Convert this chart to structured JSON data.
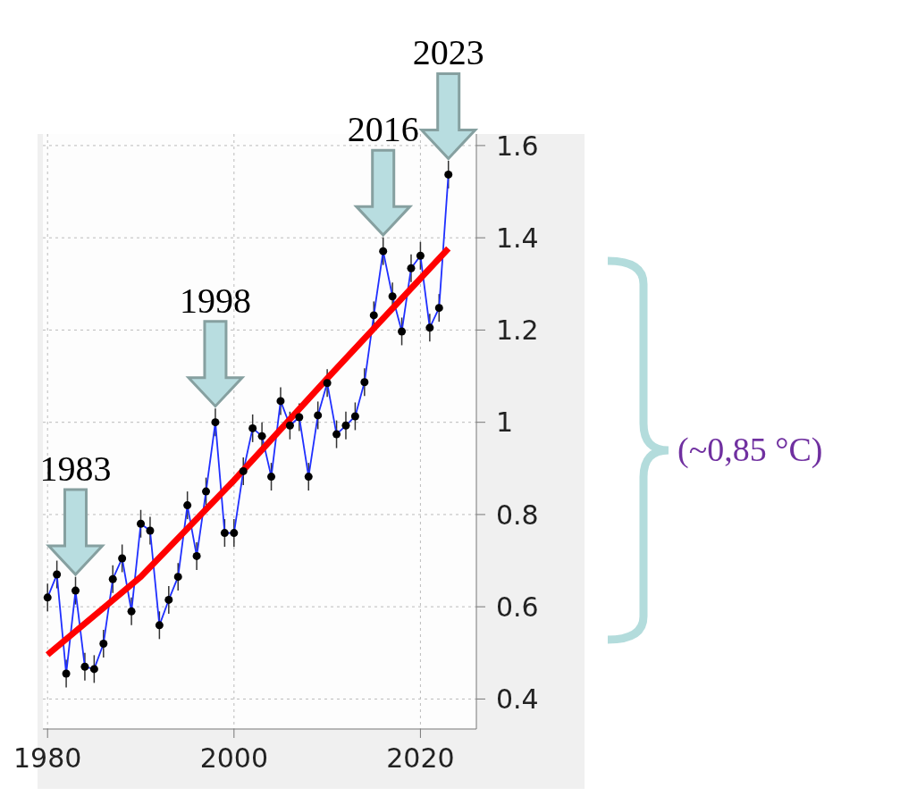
{
  "chart_data": {
    "type": "line",
    "x": [
      1980,
      1981,
      1982,
      1983,
      1984,
      1985,
      1986,
      1987,
      1988,
      1989,
      1990,
      1991,
      1992,
      1993,
      1994,
      1995,
      1996,
      1997,
      1998,
      1999,
      2000,
      2001,
      2002,
      2003,
      2004,
      2005,
      2006,
      2007,
      2008,
      2009,
      2010,
      2011,
      2012,
      2013,
      2014,
      2015,
      2016,
      2017,
      2018,
      2019,
      2020,
      2021,
      2022,
      2023
    ],
    "series": [
      {
        "color": "#1f2fff",
        "marker": "circle",
        "colors": [
          "#000000",
          "#000000",
          "#000000",
          "#000000",
          "#000000",
          "#000000",
          "#000000",
          "#000000",
          "#000000",
          "#000000",
          "#000000",
          "#000000",
          "#000000",
          "#000000",
          "#000000",
          "#000000",
          "#000000",
          "#000000",
          "#000000",
          "#000000",
          "#000000",
          "#000000",
          "#000000",
          "#000000",
          "#000000",
          "#000000",
          "#000000",
          "#000000",
          "#000000",
          "#000000",
          "#000000",
          "#000000",
          "#000000",
          "#000000",
          "#000000",
          "#000000",
          "#000000",
          "#000000",
          "#000000",
          "#000000",
          "#000000",
          "#000000",
          "#000000",
          "#000000"
        ],
        "values": [
          0.62,
          0.67,
          0.455,
          0.635,
          0.47,
          0.465,
          0.52,
          0.66,
          0.705,
          0.59,
          0.78,
          0.765,
          0.56,
          0.615,
          0.665,
          0.82,
          0.71,
          0.85,
          1.0,
          0.76,
          0.76,
          0.894,
          0.987,
          0.97,
          0.882,
          1.046,
          0.993,
          1.011,
          0.882,
          1.015,
          1.085,
          0.974,
          0.993,
          1.013,
          1.087,
          1.232,
          1.371,
          1.273,
          1.197,
          1.334,
          1.361,
          1.205,
          1.248,
          1.537
        ],
        "errors": [
          0.03,
          0.03,
          0.03,
          0.03,
          0.03,
          0.03,
          0.03,
          0.03,
          0.03,
          0.03,
          0.03,
          0.03,
          0.03,
          0.03,
          0.03,
          0.03,
          0.03,
          0.03,
          0.03,
          0.03,
          0.03,
          0.03,
          0.03,
          0.03,
          0.03,
          0.03,
          0.03,
          0.03,
          0.03,
          0.03,
          0.03,
          0.03,
          0.03,
          0.03,
          0.03,
          0.03,
          0.03,
          0.03,
          0.03,
          0.03,
          0.03,
          0.03,
          0.03,
          0.03
        ]
      },
      {
        "color": "#ff0000",
        "marker": "none",
        "x": [
          1980,
          1990,
          2000,
          2010,
          2023
        ],
        "values": [
          0.496,
          0.665,
          0.874,
          1.095,
          1.377
        ]
      }
    ],
    "xlim": [
      1979.5,
      2026
    ],
    "xticks": [
      1980,
      2000,
      2020
    ],
    "ylim": [
      0.335,
      1.625
    ],
    "yticks": [
      0.4,
      0.6,
      0.8,
      1,
      1.2,
      1.4,
      1.6
    ],
    "grid": true,
    "legend": false,
    "line_style": "solid",
    "annotations": [
      {
        "text": "1983",
        "x": 1983,
        "y": 0.635
      },
      {
        "text": "1998",
        "x": 1998,
        "y": 1.0
      },
      {
        "text": "2016",
        "x": 2016,
        "y": 1.371
      },
      {
        "text": "2023",
        "x": 2023,
        "y": 1.537
      },
      "(~0,85 °C)"
    ]
  }
}
